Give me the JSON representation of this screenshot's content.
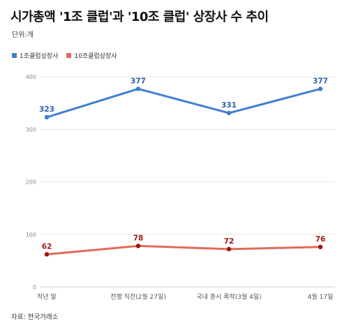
{
  "title": "시가총액 '1조 클럽'과 '10조 클럽' 상장사 수 추이",
  "unit": "단위:개",
  "source": "자료: 한국거래소",
  "colors": {
    "series1": "#3f7fd1",
    "series2": "#e2695a",
    "series1_label": "#2b5fad",
    "series2_label": "#9e1a14",
    "series2_marker": "#a3120e",
    "grid": "#e3e3e3"
  },
  "chart_data": {
    "type": "line",
    "categories": [
      "작년 말",
      "전쟁 직전(2월 27일)",
      "국내 증시 폭락(3월 4일)",
      "4월 17일"
    ],
    "series": [
      {
        "name": "1조클럽상장사",
        "values": [
          323,
          377,
          331,
          377
        ]
      },
      {
        "name": "10조클럽상장사",
        "values": [
          62,
          78,
          72,
          76
        ]
      }
    ],
    "ylim": [
      0,
      400
    ],
    "yticks": [
      0,
      100,
      200,
      300,
      400
    ],
    "grid": true,
    "legend": "top-left",
    "xlabel": "",
    "ylabel": ""
  }
}
